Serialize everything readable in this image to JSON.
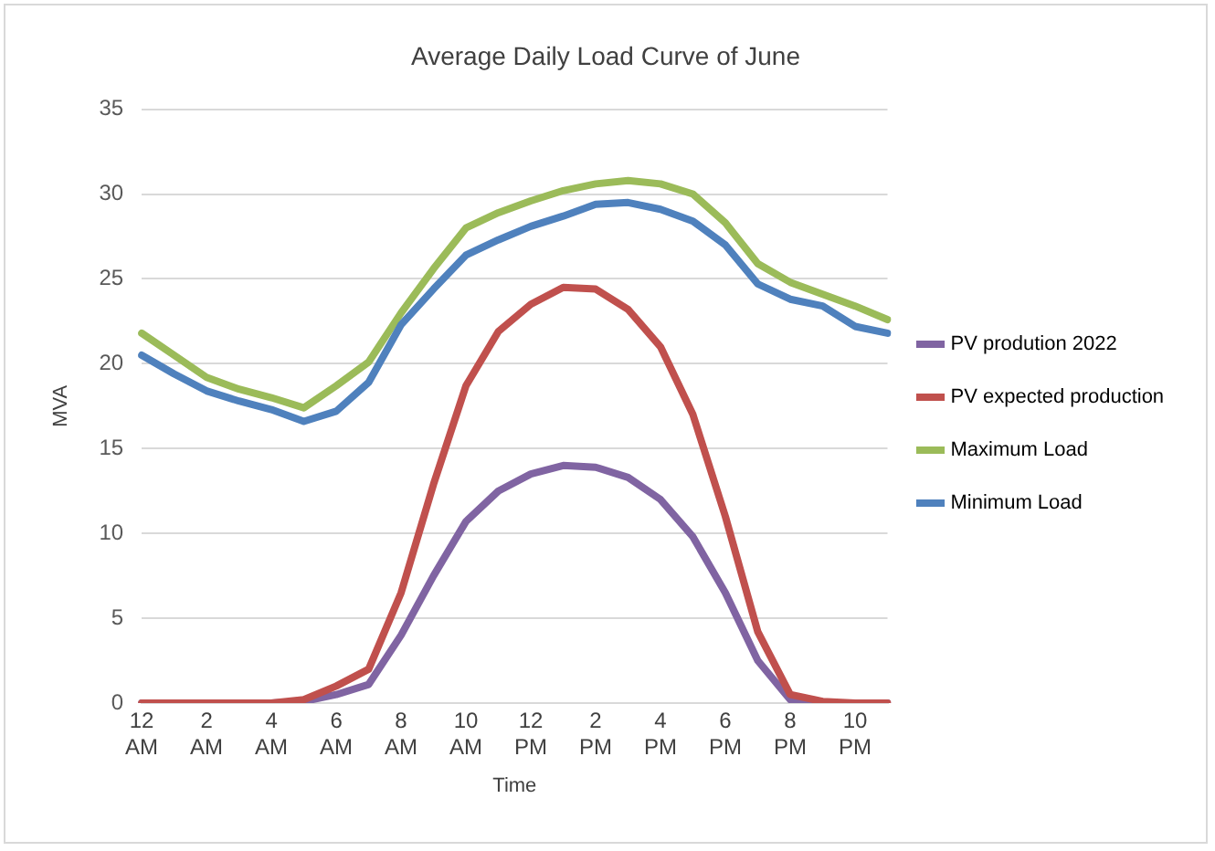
{
  "chart_data": {
    "type": "line",
    "title": "Average Daily Load Curve of June",
    "xlabel": "Time",
    "ylabel": "MVA",
    "categories": [
      "12 AM",
      null,
      "2 AM",
      null,
      "4 AM",
      null,
      "6 AM",
      null,
      "8 AM",
      null,
      "10 AM",
      null,
      "12 PM",
      null,
      "2 PM",
      null,
      "4 PM",
      null,
      "6 PM",
      null,
      "8 PM",
      null,
      "10 PM",
      null
    ],
    "series": [
      {
        "name": "PV prodution 2022",
        "color": "#8064a2",
        "values": [
          0,
          0,
          0,
          0,
          0,
          0.1,
          0.5,
          1.1,
          4,
          7.5,
          10.7,
          12.5,
          13.5,
          14.0,
          13.9,
          13.3,
          12.0,
          9.8,
          6.5,
          2.5,
          0.2,
          0,
          0,
          0
        ]
      },
      {
        "name": "PV expected production",
        "color": "#c0504d",
        "values": [
          0,
          0,
          0,
          0,
          0,
          0.2,
          1,
          2,
          6.5,
          12.9,
          18.7,
          21.9,
          23.5,
          24.5,
          24.4,
          23.2,
          21.0,
          17.0,
          11.0,
          4.2,
          0.5,
          0.1,
          0,
          0
        ]
      },
      {
        "name": "Maximum Load",
        "color": "#9bbb59",
        "values": [
          21.8,
          20.5,
          19.2,
          18.5,
          18.0,
          17.4,
          18.7,
          20.1,
          23.0,
          25.6,
          28.0,
          28.9,
          29.6,
          30.2,
          30.6,
          30.8,
          30.6,
          30.0,
          28.3,
          25.9,
          24.8,
          24.1,
          23.4,
          22.6
        ]
      },
      {
        "name": "Minimum Load",
        "color": "#4f81bd",
        "values": [
          20.5,
          19.4,
          18.4,
          17.8,
          17.3,
          16.6,
          17.2,
          18.9,
          22.3,
          24.4,
          26.4,
          27.3,
          28.1,
          28.7,
          29.4,
          29.5,
          29.1,
          28.4,
          27.0,
          24.7,
          23.8,
          23.4,
          22.2,
          21.8
        ]
      }
    ],
    "ylim": [
      0,
      35
    ],
    "yticks": [
      0,
      5,
      10,
      15,
      20,
      25,
      30,
      35
    ],
    "grid": "y",
    "legend": "right",
    "marker": "none",
    "line_style": "solid"
  }
}
